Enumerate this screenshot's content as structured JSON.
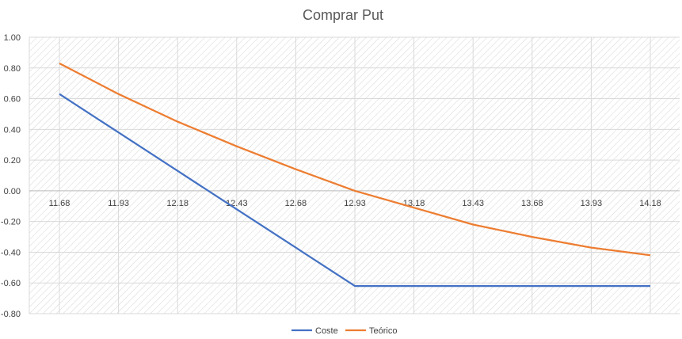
{
  "chart_data": {
    "type": "line",
    "title": "Comprar Put",
    "xlabel": "",
    "ylabel": "",
    "x": [
      "11.68",
      "11.93",
      "12.18",
      "12.43",
      "12.68",
      "12.93",
      "13.18",
      "13.43",
      "13.68",
      "13.93",
      "14.18"
    ],
    "y_ticks": [
      "1.00",
      "0.80",
      "0.60",
      "0.40",
      "0.20",
      "0.00",
      "-0.20",
      "-0.40",
      "-0.60",
      "-0.80"
    ],
    "ylim": [
      -0.8,
      1.0
    ],
    "grid": true,
    "legend_position": "bottom",
    "series": [
      {
        "name": "Coste",
        "color": "#4472C4",
        "values": [
          0.63,
          0.38,
          0.13,
          -0.12,
          -0.37,
          -0.62,
          -0.62,
          -0.62,
          -0.62,
          -0.62,
          -0.62
        ]
      },
      {
        "name": "Teórico",
        "color": "#ED7D31",
        "values": [
          0.83,
          0.63,
          0.45,
          0.29,
          0.14,
          0.0,
          -0.11,
          -0.22,
          -0.3,
          -0.37,
          -0.42
        ]
      }
    ]
  }
}
